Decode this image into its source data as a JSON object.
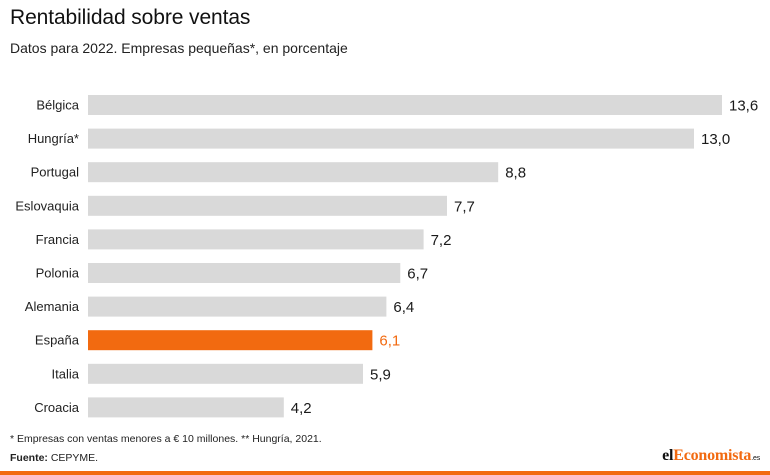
{
  "header": {
    "title": "Rentabilidad sobre ventas",
    "subtitle": "Datos para 2022. Empresas pequeñas*, en porcentaje"
  },
  "chart_data": {
    "type": "bar",
    "orientation": "horizontal",
    "title": "Rentabilidad sobre ventas",
    "subtitle": "Datos para 2022. Empresas pequeñas*, en porcentaje",
    "categories": [
      "Bélgica",
      "Hungría*",
      "Portugal",
      "Eslovaquia",
      "Francia",
      "Polonia",
      "Alemania",
      "España",
      "Italia",
      "Croacia"
    ],
    "values": [
      13.6,
      13.0,
      8.8,
      7.7,
      7.2,
      6.7,
      6.4,
      6.1,
      5.9,
      4.2
    ],
    "value_labels": [
      "13,6",
      "13,0",
      "8,8",
      "7,7",
      "7,2",
      "6,7",
      "6,4",
      "6,1",
      "5,9",
      "4,2"
    ],
    "highlight": "España",
    "colors": {
      "bar": "#d9d9d9",
      "highlight": "#f26a10",
      "label": "#1a1a1a"
    },
    "xlim": [
      0,
      13.6
    ],
    "grid": false,
    "legend": "none"
  },
  "footer": {
    "footnote": "* Empresas con ventas menores a € 10 millones. ** Hungría, 2021.",
    "source_label": "Fuente:",
    "source_value": "CEPYME.",
    "logo_part1": "el",
    "logo_part2": "Economista",
    "logo_tld": ".es"
  }
}
